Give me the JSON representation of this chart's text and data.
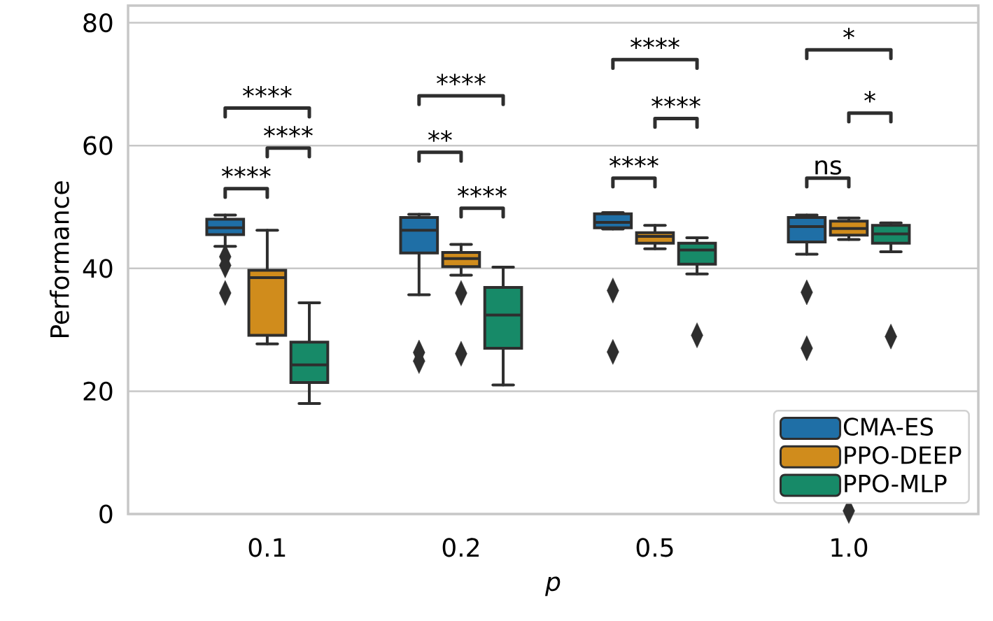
{
  "chart_data": {
    "type": "box",
    "xlabel": "p",
    "ylabel": "Performance",
    "categories": [
      "0.1",
      "0.2",
      "0.5",
      "1.0"
    ],
    "ylim": [
      0,
      82.8
    ],
    "yticks": [
      0,
      20,
      40,
      60,
      80
    ],
    "grid": "y",
    "legend": "bottom right",
    "marker": "diamond",
    "series": [
      {
        "name": "CMA-ES",
        "color": "#1f6fa6",
        "boxes": [
          {
            "low": 43.6,
            "q1": 45.5,
            "median": 46.6,
            "q3": 48.0,
            "high": 48.7,
            "outliers": [
              41.9,
              40.5,
              36.0
            ]
          },
          {
            "low": 35.7,
            "q1": 42.5,
            "median": 46.2,
            "q3": 48.3,
            "high": 48.8,
            "outliers": [
              26.3,
              24.9
            ]
          },
          {
            "low": 46.4,
            "q1": 46.6,
            "median": 47.5,
            "q3": 48.9,
            "high": 49.1,
            "outliers": [
              36.4,
              26.4
            ]
          },
          {
            "low": 42.3,
            "q1": 44.3,
            "median": 46.8,
            "q3": 48.3,
            "high": 48.7,
            "outliers": [
              36.1,
              27.0
            ]
          }
        ]
      },
      {
        "name": "PPO-DEEP",
        "color": "#d08c1c",
        "boxes": [
          {
            "low": 27.7,
            "q1": 29.1,
            "median": 38.5,
            "q3": 39.7,
            "high": 46.2
          },
          {
            "low": 38.9,
            "q1": 40.3,
            "median": 41.6,
            "q3": 42.6,
            "high": 43.9,
            "outliers": [
              36.0,
              26.1
            ]
          },
          {
            "low": 43.2,
            "q1": 44.1,
            "median": 45.2,
            "q3": 45.8,
            "high": 47.0
          },
          {
            "low": 44.7,
            "q1": 45.4,
            "median": 46.5,
            "q3": 47.7,
            "high": 48.2,
            "outliers": [
              0.5
            ]
          }
        ]
      },
      {
        "name": "PPO-MLP",
        "color": "#178a68",
        "boxes": [
          {
            "low": 18.0,
            "q1": 21.4,
            "median": 24.3,
            "q3": 28.0,
            "high": 34.4
          },
          {
            "low": 21.0,
            "q1": 27.0,
            "median": 32.4,
            "q3": 36.9,
            "high": 40.2
          },
          {
            "low": 39.1,
            "q1": 40.7,
            "median": 43.0,
            "q3": 44.1,
            "high": 45.0,
            "outliers": [
              29.1
            ]
          },
          {
            "low": 42.7,
            "q1": 44.1,
            "median": 45.6,
            "q3": 47.0,
            "high": 47.4,
            "outliers": [
              28.9
            ]
          }
        ]
      }
    ],
    "annotations": [
      "****",
      "****",
      "****",
      "**",
      "****",
      "****",
      "****",
      "****",
      "****",
      "ns",
      "*",
      "*"
    ]
  }
}
